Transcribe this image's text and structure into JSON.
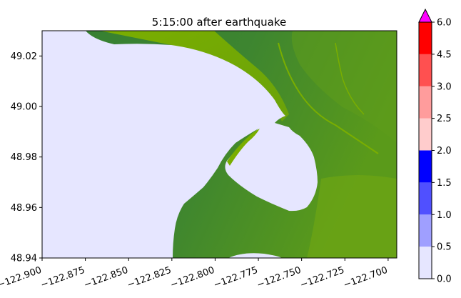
{
  "title": "5:15:00 after earthquake",
  "map": {
    "x_range": [
      -122.9,
      -122.695
    ],
    "y_range": [
      48.94,
      49.03
    ],
    "x_ticks": [
      "−122.900",
      "−122.875",
      "−122.850",
      "−122.825",
      "−122.800",
      "−122.775",
      "−122.750",
      "−122.725",
      "−122.700"
    ],
    "x_tick_values": [
      -122.9,
      -122.875,
      -122.85,
      -122.825,
      -122.8,
      -122.775,
      -122.75,
      -122.725,
      -122.7
    ],
    "y_ticks": [
      "48.94",
      "48.96",
      "48.98",
      "49.00",
      "49.02"
    ],
    "y_tick_values": [
      48.94,
      48.96,
      48.98,
      49.0,
      49.02
    ],
    "land_color_dark": "#367f33",
    "land_color_light": "#7aae00",
    "water_color": "#e6e6ff"
  },
  "colorbar": {
    "ticks": [
      "0.0",
      "0.5",
      "1.0",
      "1.5",
      "2.0",
      "2.5",
      "3.0",
      "4.5",
      "6.0"
    ],
    "levels": [
      0.0,
      0.5,
      1.0,
      1.5,
      2.0,
      2.5,
      3.0,
      4.5,
      6.0
    ],
    "colors": [
      "#e6e6ff",
      "#9f9fff",
      "#5050ff",
      "#0000ff",
      "#ffcccc",
      "#ff9c9c",
      "#ff5050",
      "#ff0000"
    ],
    "extend_color": "#ff00ff"
  }
}
